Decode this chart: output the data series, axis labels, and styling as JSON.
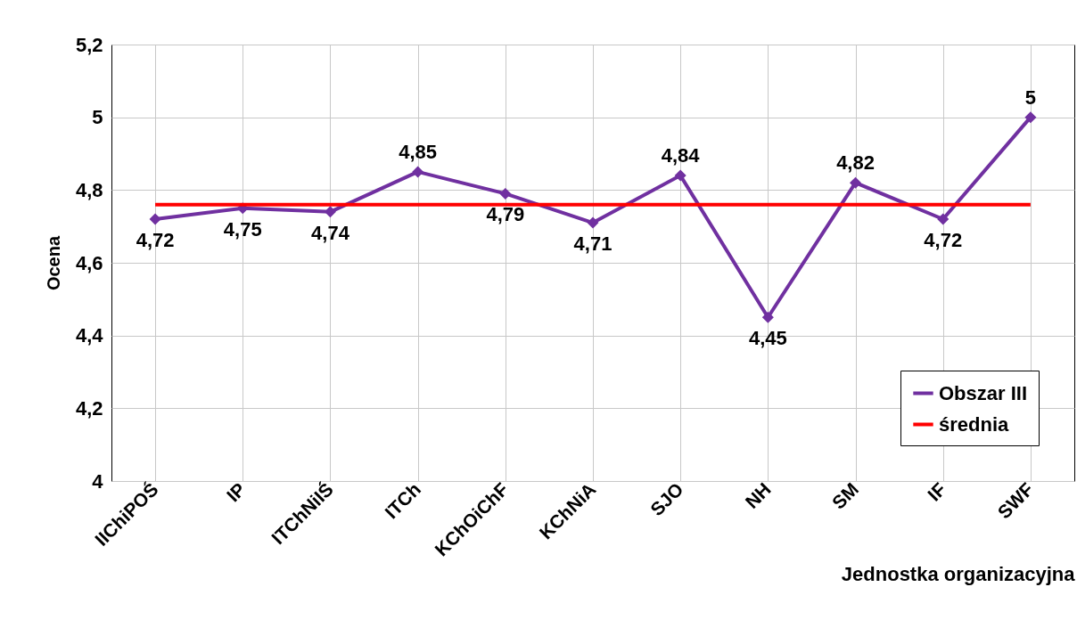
{
  "chart_data": {
    "type": "line",
    "ylabel": "Ocena",
    "xlabel": "Jednostka organizacyjna",
    "categories": [
      "IIChiPOŚ",
      "IP",
      "ITChNiIŚ",
      "ITCh",
      "KChOiChF",
      "KChNiA",
      "SJO",
      "NH",
      "SM",
      "IF",
      "SWF"
    ],
    "ylim": [
      4,
      5.2
    ],
    "yticks": [
      4,
      {
        "value": 4.2,
        "label": "4,2"
      },
      {
        "value": 4.4,
        "label": "4,4"
      },
      {
        "value": 4.6,
        "label": "4,6"
      },
      {
        "value": 4.8,
        "label": "4,8"
      },
      5,
      {
        "value": 5.2,
        "label": "5,2"
      }
    ],
    "grid": true,
    "legend": "bottom right",
    "series": [
      {
        "name": "Obszar III",
        "color": "#7030a0",
        "marker": "diamond",
        "values": [
          4.72,
          4.75,
          4.74,
          4.85,
          4.79,
          4.71,
          4.84,
          4.45,
          4.82,
          4.72,
          5
        ],
        "value_labels": [
          "4,72",
          "4,75",
          "4,74",
          "4,85",
          "4,79",
          "4,71",
          "4,84",
          "4,45",
          "4,82",
          "4,72",
          "5"
        ]
      },
      {
        "name": "średnia",
        "color": "#ff0000",
        "marker": "none",
        "values": [
          4.76,
          4.76,
          4.76,
          4.76,
          4.76,
          4.76,
          4.76,
          4.76,
          4.76,
          4.76,
          4.76
        ]
      }
    ]
  }
}
